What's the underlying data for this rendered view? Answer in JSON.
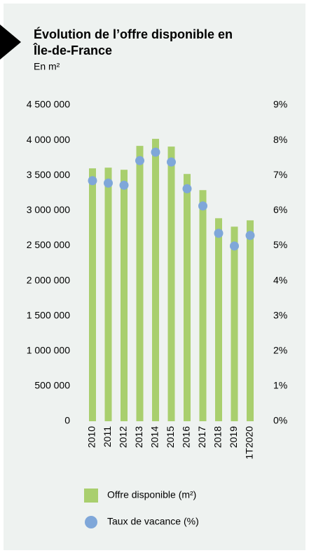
{
  "chart_data": {
    "type": "bar_dot",
    "title_lines": [
      "Évolution de l’offre disponible en",
      "Île-de-France"
    ],
    "subtitle": "En m²",
    "categories": [
      "2010",
      "2011",
      "2012",
      "2013",
      "2014",
      "2015",
      "2016",
      "2017",
      "2018",
      "2019",
      "1T2020"
    ],
    "series": [
      {
        "name": "Offre disponible (m²)",
        "color": "#a9cf6e",
        "axis": "y",
        "values": [
          3600000,
          3610000,
          3580000,
          3920000,
          4020000,
          3910000,
          3520000,
          3290000,
          2890000,
          2770000,
          2860000
        ]
      },
      {
        "name": "Taux de vacance (%)",
        "color": "#7fa7d9",
        "axis": "y2",
        "values": [
          6.85,
          6.78,
          6.72,
          7.42,
          7.66,
          7.38,
          6.62,
          6.13,
          5.35,
          4.99,
          5.29
        ]
      }
    ],
    "ylim": [
      0,
      4500000
    ],
    "yticks": [
      0,
      {
        "value": 500000,
        "label": "500 000"
      },
      {
        "value": 1000000,
        "label": "1 000 000"
      },
      {
        "value": 1500000,
        "label": "1 500 000"
      },
      {
        "value": 2000000,
        "label": "2 000 000"
      },
      {
        "value": 2500000,
        "label": "2 500 000"
      },
      {
        "value": 3000000,
        "label": "3 000 000"
      },
      {
        "value": 3500000,
        "label": "3 500 000"
      },
      {
        "value": 4000000,
        "label": "4 000 000"
      },
      {
        "value": 4500000,
        "label": "4 500 000"
      }
    ],
    "y2lim": [
      0,
      9
    ],
    "y2ticks": [
      {
        "value": 0,
        "label": "0%"
      },
      {
        "value": 1,
        "label": "1%"
      },
      {
        "value": 2,
        "label": "2%"
      },
      {
        "value": 3,
        "label": "3%"
      },
      {
        "value": 4,
        "label": "4%"
      },
      {
        "value": 5,
        "label": "5%"
      },
      {
        "value": 6,
        "label": "6%"
      },
      {
        "value": 7,
        "label": "7%"
      },
      {
        "value": 8,
        "label": "8%"
      },
      {
        "value": 9,
        "label": "9%"
      }
    ],
    "grid": false
  }
}
